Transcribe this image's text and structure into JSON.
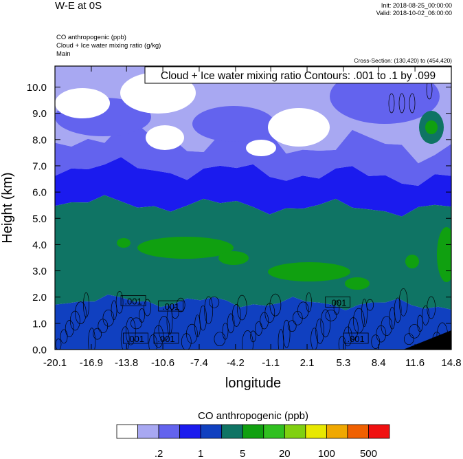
{
  "header": {
    "title": "W-E at 0S",
    "init": "Init: 2018-08-25_00:00:00",
    "valid": "Valid: 2018-10-02_06:00:00",
    "var_lines": [
      "CO anthropogenic   (ppb)",
      "Cloud + Ice water mixing ratio   (g/kg)",
      "Main"
    ],
    "cross_section": "Cross-Section: (130,420) to (454,420)"
  },
  "chart_data": {
    "type": "heatmap",
    "contour_label": "Cloud + Ice water mixing ratio Contours: .001 to .1 by .099",
    "xlabel": "longitude",
    "ylabel": "Height (km)",
    "xlim": [
      -20.1,
      14.8
    ],
    "ylim": [
      0.0,
      10.8
    ],
    "x_ticks": [
      "-20.1",
      "-16.9",
      "-13.8",
      "-10.6",
      "-7.4",
      "-4.2",
      "-1.1",
      "2.1",
      "5.3",
      "8.4",
      "11.6",
      "14.8"
    ],
    "y_ticks": [
      "0.0",
      "1.0",
      "2.0",
      "3.0",
      "4.0",
      "5.0",
      "6.0",
      "7.0",
      "8.0",
      "9.0",
      "10.0"
    ],
    "contour_value_labels": [
      {
        "text": ".001",
        "lon": -13.2,
        "h": 1.85
      },
      {
        "text": ".001",
        "lon": -9.9,
        "h": 1.65
      },
      {
        "text": ".001",
        "lon": 4.8,
        "h": 1.8
      },
      {
        "text": ".001",
        "lon": -13.0,
        "h": 0.42
      },
      {
        "text": ".001",
        "lon": -10.3,
        "h": 0.42
      },
      {
        "text": ".001",
        "lon": 6.4,
        "h": 0.42
      }
    ],
    "colorbar": {
      "title": "CO anthropogenic  (ppb)",
      "colors": [
        "#ffffff",
        "#a8a8f2",
        "#6363ee",
        "#1b1bee",
        "#1040c0",
        "#0f7464",
        "#10a010",
        "#30c020",
        "#80d010",
        "#e8e800",
        "#f0a800",
        "#f06000",
        "#f01010"
      ],
      "tick_labels": [
        ".2",
        "1",
        "5",
        "20",
        "100",
        "500"
      ]
    },
    "regions": {
      "bottom_band": "#1040c0",
      "mid_band": "#0f7464",
      "upper_band": "#1b1bee",
      "high_band": "#6363ee",
      "top_band": "#a8a8f2",
      "clear": "#ffffff",
      "patch": "#10a010",
      "terrain": "#000000"
    }
  }
}
